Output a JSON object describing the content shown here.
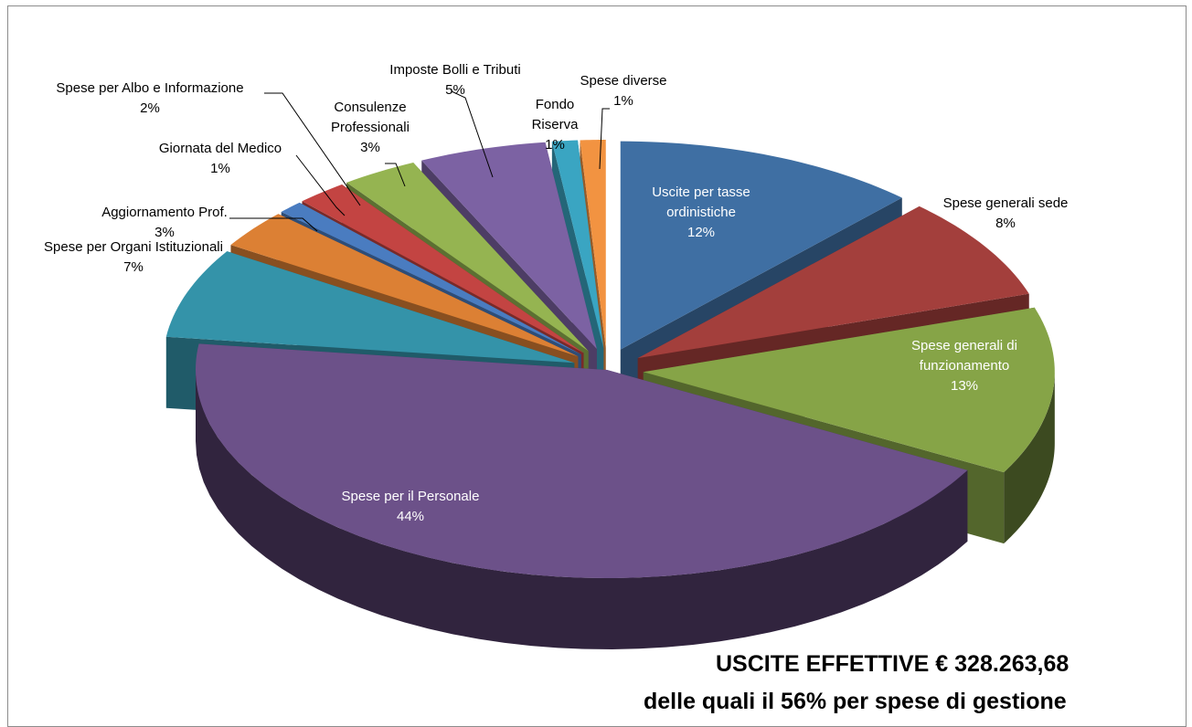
{
  "chart_data": {
    "type": "pie",
    "style": "3d-exploded",
    "legend": "none",
    "slices": [
      {
        "label": "Uscite per tasse ordinistiche",
        "value": 12,
        "percent_label": "12%",
        "color": "#3f6fa3"
      },
      {
        "label": "Spese generali sede",
        "value": 8,
        "percent_label": "8%",
        "color": "#a33f3c"
      },
      {
        "label": "Spese generali di funzionamento",
        "value": 13,
        "percent_label": "13%",
        "color": "#86a447"
      },
      {
        "label": "Spese per il Personale",
        "value": 44,
        "percent_label": "44%",
        "color": "#6c5189"
      },
      {
        "label": "Spese per Organi Istituzionali",
        "value": 7,
        "percent_label": "7%",
        "color": "#3493a9"
      },
      {
        "label": "Aggiornamento Prof.",
        "value": 3,
        "percent_label": "3%",
        "color": "#dc8034"
      },
      {
        "label": "Giornata del Medico",
        "value": 1,
        "percent_label": "1%",
        "color": "#4a7cc0"
      },
      {
        "label": "Spese per Albo e Informazione",
        "value": 2,
        "percent_label": "2%",
        "color": "#c34442"
      },
      {
        "label": "Consulenze Professionali",
        "value": 3,
        "percent_label": "3%",
        "color": "#95b451"
      },
      {
        "label": "Imposte Bolli e Tributi",
        "value": 5,
        "percent_label": "5%",
        "color": "#7c62a3"
      },
      {
        "label": "Fondo Riserva",
        "value": 1,
        "percent_label": "1%",
        "color": "#3aa5c2"
      },
      {
        "label": "Spese diverse",
        "value": 1,
        "percent_label": "1%",
        "color": "#f29341"
      }
    ]
  },
  "annotation": {
    "line1": "USCITE EFFETTIVE € 328.263,68",
    "line2": "delle quali il 56% per spese di gestione"
  }
}
